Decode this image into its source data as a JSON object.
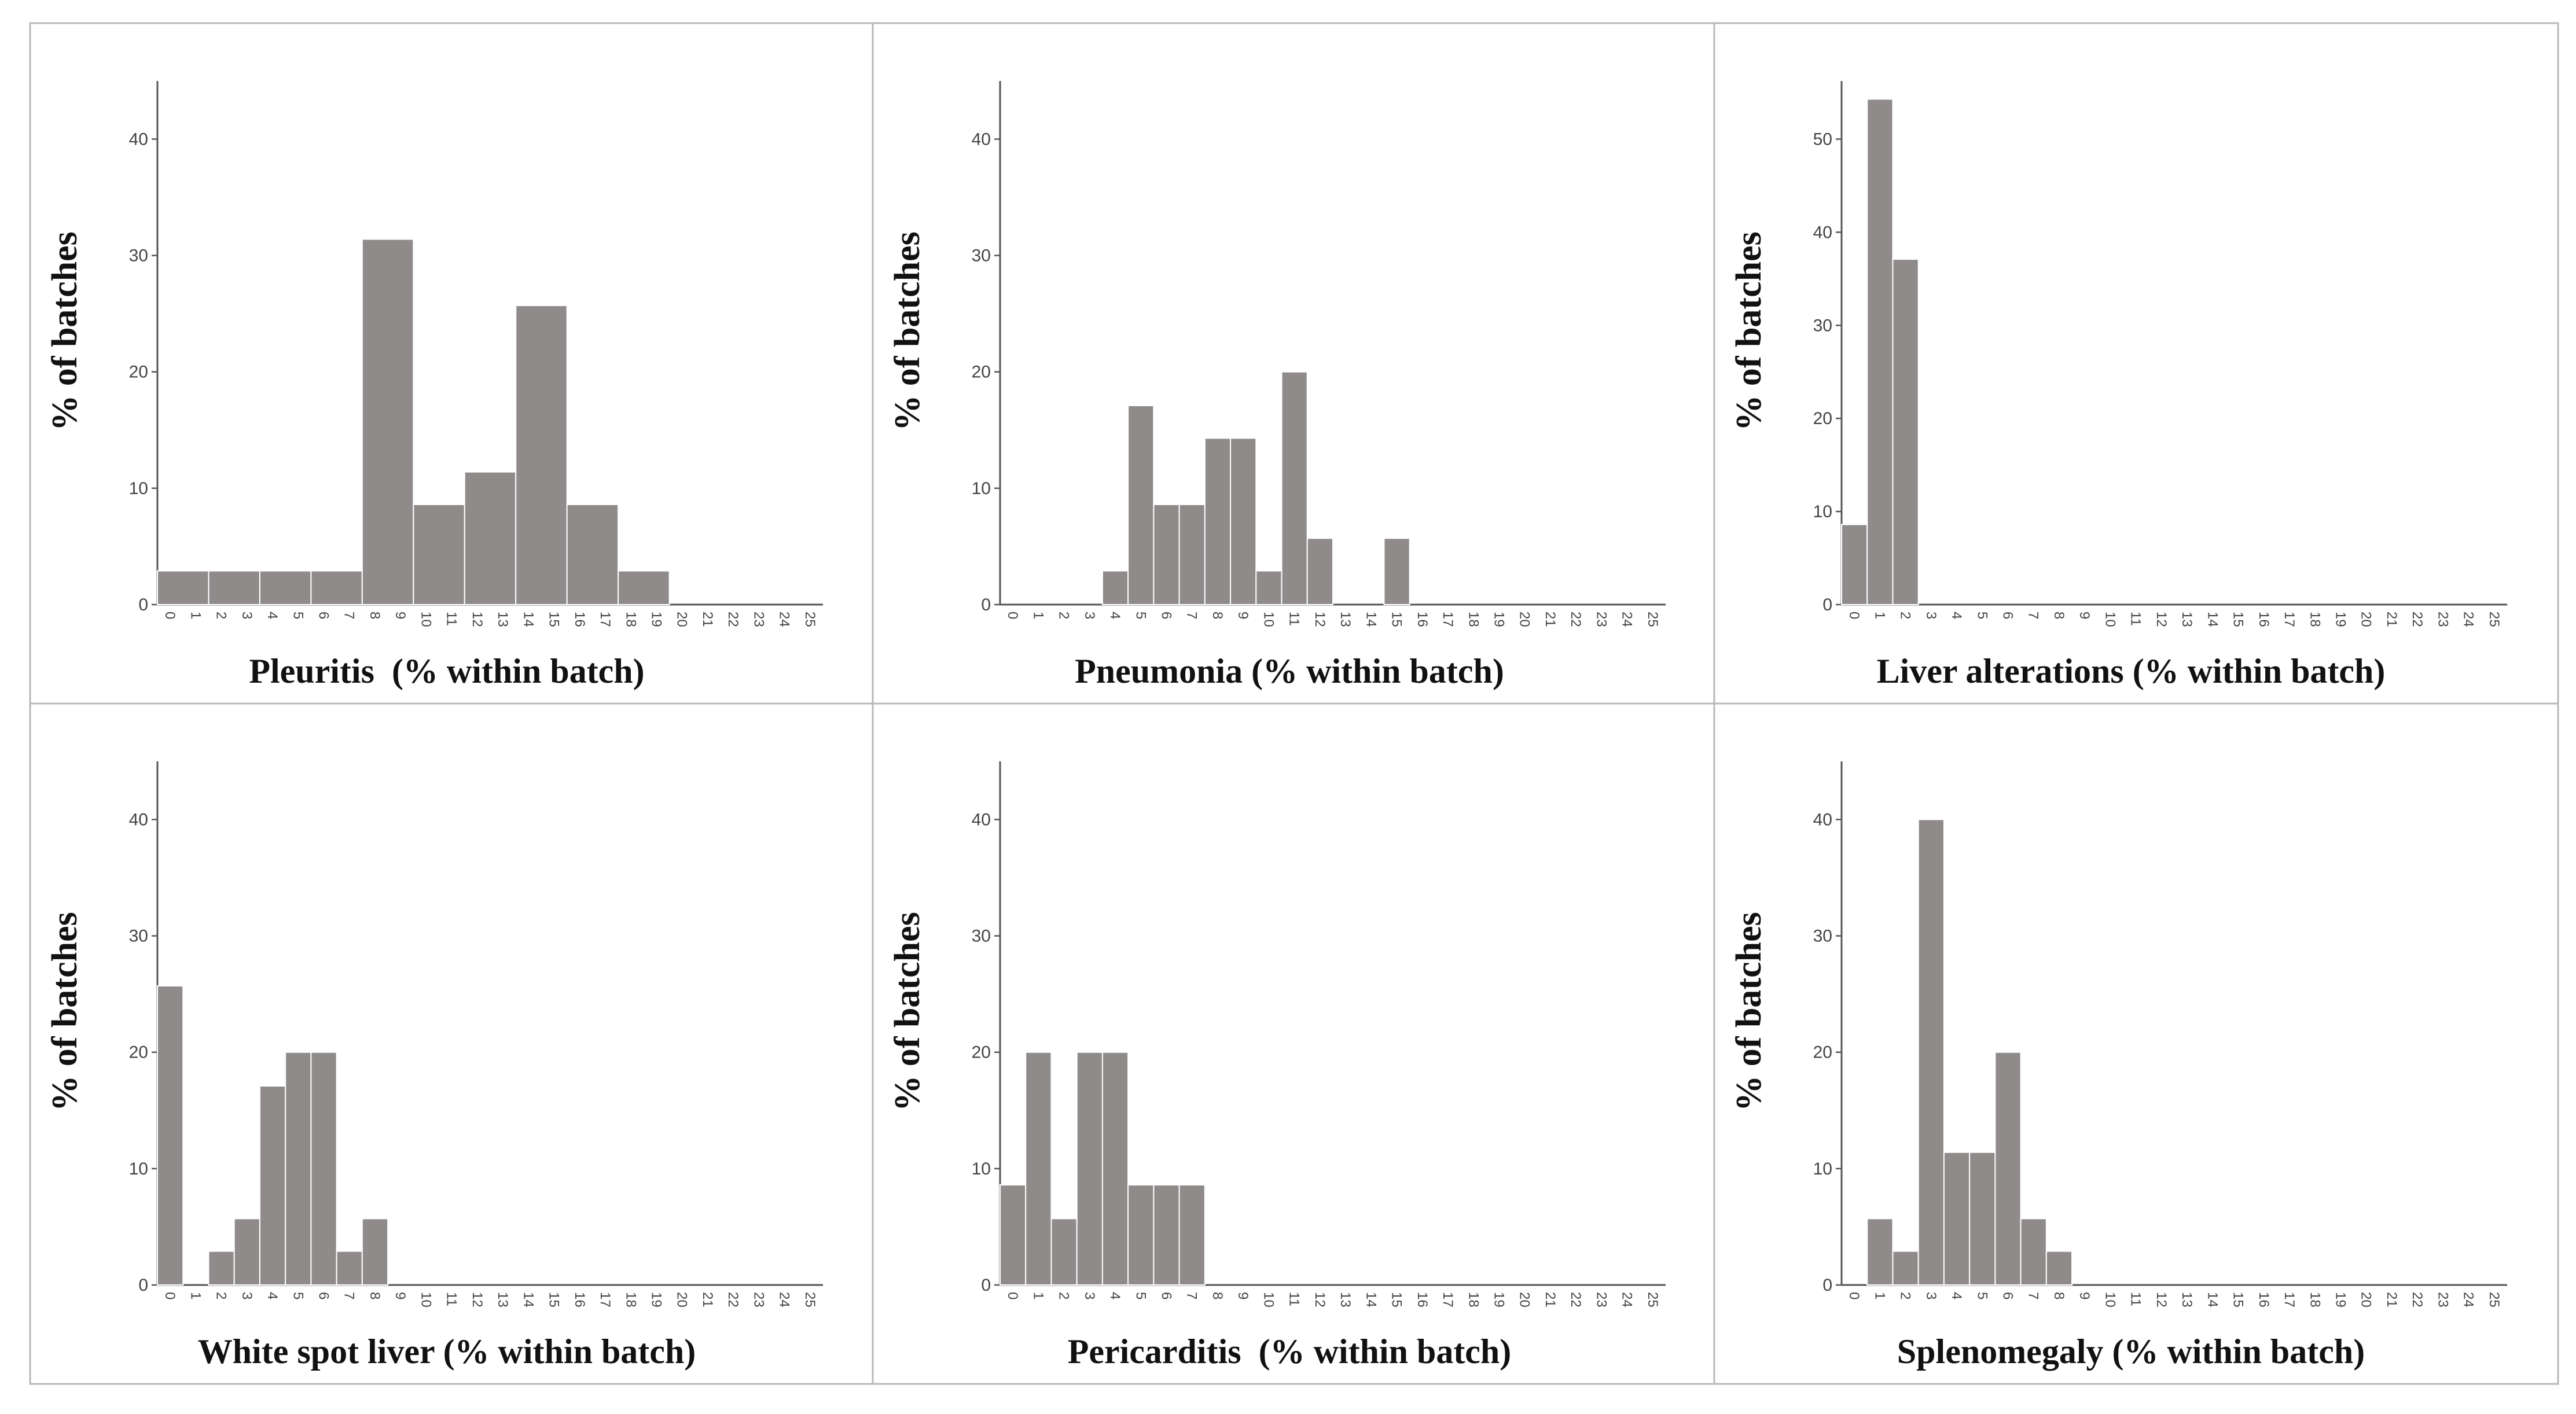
{
  "chart_data": [
    {
      "type": "bar",
      "title": "Pleuritis",
      "xlabel": "Pleuritis  (% within batch)",
      "ylabel": "% of batches",
      "categories": [
        "0",
        "1",
        "2",
        "3",
        "4",
        "5",
        "6",
        "7",
        "8",
        "9",
        "10",
        "11",
        "12",
        "13",
        "14",
        "15",
        "16",
        "17",
        "18",
        "19",
        "20",
        "21",
        "22",
        "23",
        "24",
        "25"
      ],
      "bins": [
        {
          "label": "0-1",
          "value": 2.9
        },
        {
          "label": "2-3",
          "value": 2.9
        },
        {
          "label": "4-5",
          "value": 2.9
        },
        {
          "label": "6-7",
          "value": 2.9
        },
        {
          "label": "8-9",
          "value": 31.4
        },
        {
          "label": "10-11",
          "value": 8.6
        },
        {
          "label": "12-13",
          "value": 11.4
        },
        {
          "label": "14-15",
          "value": 25.7
        },
        {
          "label": "16-17",
          "value": 8.6
        },
        {
          "label": "18-19",
          "value": 2.9
        }
      ],
      "bin_width": 2,
      "ylim": [
        0,
        44
      ],
      "yticks": [
        0,
        10,
        20,
        30,
        40
      ]
    },
    {
      "type": "bar",
      "title": "Pneumonia",
      "xlabel": "Pneumonia (% within batch)",
      "ylabel": "% of batches",
      "categories": [
        "0",
        "1",
        "2",
        "3",
        "4",
        "5",
        "6",
        "7",
        "8",
        "9",
        "10",
        "11",
        "12",
        "13",
        "14",
        "15",
        "16",
        "17",
        "18",
        "19",
        "20",
        "21",
        "22",
        "23",
        "24",
        "25"
      ],
      "bins": [
        {
          "label": "4",
          "value": 2.9
        },
        {
          "label": "5",
          "value": 17.1
        },
        {
          "label": "6",
          "value": 8.6
        },
        {
          "label": "7",
          "value": 8.6
        },
        {
          "label": "8",
          "value": 14.3
        },
        {
          "label": "9",
          "value": 14.3
        },
        {
          "label": "10",
          "value": 2.9
        },
        {
          "label": "11",
          "value": 20.0
        },
        {
          "label": "12",
          "value": 5.7
        },
        {
          "label": "15",
          "value": 5.7
        }
      ],
      "bin_width": 1,
      "ylim": [
        0,
        44
      ],
      "yticks": [
        0,
        10,
        20,
        30,
        40
      ]
    },
    {
      "type": "bar",
      "title": "Liver alterations",
      "xlabel": "Liver alterations (% within batch)",
      "ylabel": "% of batches",
      "categories": [
        "0",
        "1",
        "2",
        "3",
        "4",
        "5",
        "6",
        "7",
        "8",
        "9",
        "10",
        "11",
        "12",
        "13",
        "14",
        "15",
        "16",
        "17",
        "18",
        "19",
        "20",
        "21",
        "22",
        "23",
        "24",
        "25"
      ],
      "bins": [
        {
          "label": "0",
          "value": 8.6
        },
        {
          "label": "1",
          "value": 54.3
        },
        {
          "label": "2",
          "value": 37.1
        }
      ],
      "bin_width": 1,
      "ylim": [
        0,
        55
      ],
      "yticks": [
        0,
        10,
        20,
        30,
        40,
        50
      ]
    },
    {
      "type": "bar",
      "title": "White spot liver",
      "xlabel": "White spot liver (% within batch)",
      "ylabel": "% of batches",
      "categories": [
        "0",
        "1",
        "2",
        "3",
        "4",
        "5",
        "6",
        "7",
        "8",
        "9",
        "10",
        "11",
        "12",
        "13",
        "14",
        "15",
        "16",
        "17",
        "18",
        "19",
        "20",
        "21",
        "22",
        "23",
        "24",
        "25"
      ],
      "bins": [
        {
          "label": "0",
          "value": 25.7
        },
        {
          "label": "2",
          "value": 2.9
        },
        {
          "label": "3",
          "value": 5.7
        },
        {
          "label": "4",
          "value": 17.1
        },
        {
          "label": "5",
          "value": 20.0
        },
        {
          "label": "6",
          "value": 20.0
        },
        {
          "label": "7",
          "value": 2.9
        },
        {
          "label": "8",
          "value": 5.7
        }
      ],
      "bin_width": 1,
      "ylim": [
        0,
        44
      ],
      "yticks": [
        0,
        10,
        20,
        30,
        40
      ]
    },
    {
      "type": "bar",
      "title": "Pericarditis",
      "xlabel": "Pericarditis  (% within batch)",
      "ylabel": "% of batches",
      "categories": [
        "0",
        "1",
        "2",
        "3",
        "4",
        "5",
        "6",
        "7",
        "8",
        "9",
        "10",
        "11",
        "12",
        "13",
        "14",
        "15",
        "16",
        "17",
        "18",
        "19",
        "20",
        "21",
        "22",
        "23",
        "24",
        "25"
      ],
      "bins": [
        {
          "label": "0",
          "value": 8.6
        },
        {
          "label": "1",
          "value": 20.0
        },
        {
          "label": "2",
          "value": 5.7
        },
        {
          "label": "3",
          "value": 20.0
        },
        {
          "label": "4",
          "value": 20.0
        },
        {
          "label": "5",
          "value": 8.6
        },
        {
          "label": "6",
          "value": 8.6
        },
        {
          "label": "7",
          "value": 8.6
        }
      ],
      "bin_width": 1,
      "ylim": [
        0,
        44
      ],
      "yticks": [
        0,
        10,
        20,
        30,
        40
      ]
    },
    {
      "type": "bar",
      "title": "Splenomegaly",
      "xlabel": "Splenomegaly (% within batch)",
      "ylabel": "% of batches",
      "categories": [
        "0",
        "1",
        "2",
        "3",
        "4",
        "5",
        "6",
        "7",
        "8",
        "9",
        "10",
        "11",
        "12",
        "13",
        "14",
        "15",
        "16",
        "17",
        "18",
        "19",
        "20",
        "21",
        "22",
        "23",
        "24",
        "25"
      ],
      "bins": [
        {
          "label": "1",
          "value": 5.7
        },
        {
          "label": "2",
          "value": 2.9
        },
        {
          "label": "3",
          "value": 40.0
        },
        {
          "label": "4",
          "value": 11.4
        },
        {
          "label": "5",
          "value": 11.4
        },
        {
          "label": "6",
          "value": 20.0
        },
        {
          "label": "7",
          "value": 5.7
        },
        {
          "label": "8",
          "value": 2.9
        }
      ],
      "bin_width": 1,
      "ylim": [
        0,
        44
      ],
      "yticks": [
        0,
        10,
        20,
        30,
        40
      ]
    }
  ]
}
